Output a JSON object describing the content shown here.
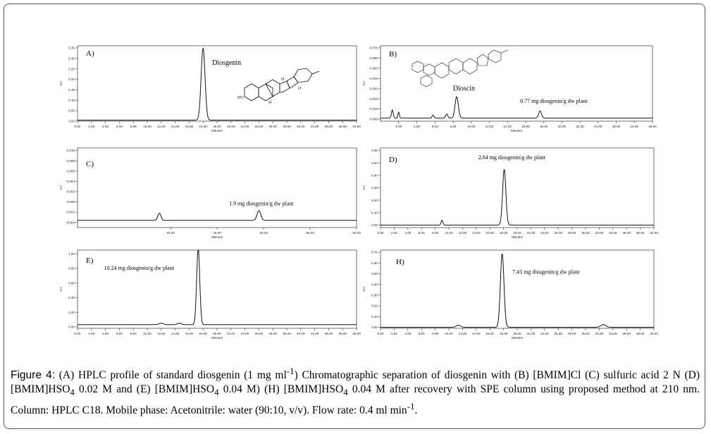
{
  "caption": {
    "label": "Figure 4:",
    "p1": "(A) HPLC profile of standard diosgenin (1 mg ml",
    "sup1": "-1",
    "p2": ") Chromatographic separation of diosgenin with (B) [BMIM]Cl (C) sulfuric acid 2 N (D) [BMIM]HSO",
    "sub1": "4",
    "p3": " 0.02 M and (E) [BMIM]HSO",
    "sub2": "4",
    "p4": " 0.04 M) (H) [BMIM]HSO",
    "sub3": "4",
    "p5": " 0.04 M after recovery with SPE column using proposed method at 210 nm. Column: HPLC C18. Mobile phase: Acetonitrile: water (90:10, v/v). Flow rate: 0.4 ml min",
    "sup2": "-1",
    "p6": "."
  },
  "chart_data": [
    {
      "type": "line",
      "panel": "A)",
      "xlabel": "Minutes",
      "ylabel": "AU",
      "xlim": [
        0,
        40
      ],
      "ylim": [
        0,
        0.36
      ],
      "xticks": [
        "0.00",
        "2.00",
        "4.00",
        "6.00",
        "8.00",
        "10.00",
        "12.00",
        "14.00",
        "16.00",
        "18.00",
        "20.00",
        "22.00",
        "24.00",
        "26.00",
        "28.00",
        "30.00",
        "32.00",
        "34.00",
        "36.00",
        "38.00",
        "40.00"
      ],
      "yticks": [
        "0.00",
        "0.05",
        "0.10",
        "0.15",
        "0.20",
        "0.25",
        "0.30",
        "0.35"
      ],
      "baseline": 0.005,
      "peaks": [
        [
          18.0,
          0.345,
          0.28
        ]
      ],
      "annotations": [
        {
          "text": "Diosgenin",
          "x": 19.3,
          "y": 0.27
        }
      ],
      "compound": "Diosgenin"
    },
    {
      "type": "line",
      "panel": "B)",
      "xlabel": "Minutes",
      "ylabel": "AU",
      "xlim": [
        0,
        30
      ],
      "ylim": [
        -0.002,
        0.072
      ],
      "xticks": [
        "2.00",
        "4.00",
        "6.00",
        "8.00",
        "10.00",
        "12.00",
        "14.00",
        "16.00",
        "18.00",
        "20.00",
        "22.00",
        "24.00",
        "26.00",
        "28.00",
        "30.00"
      ],
      "yticks": [
        "0.000",
        "0.010",
        "0.020",
        "0.030",
        "0.040",
        "0.050",
        "0.060",
        "0.070"
      ],
      "baseline": 0.001,
      "peaks": [
        [
          1.3,
          0.008,
          0.1
        ],
        [
          2.0,
          0.006,
          0.08
        ],
        [
          5.8,
          0.003,
          0.1
        ],
        [
          7.3,
          0.004,
          0.12
        ],
        [
          8.4,
          0.021,
          0.18
        ],
        [
          17.6,
          0.007,
          0.16
        ]
      ],
      "annotations": [
        {
          "text": "Dioscin",
          "x": 8.0,
          "y": 0.028
        },
        {
          "text": "0.77 mg diosgenin/g dw plant",
          "x": 15.4,
          "y": 0.016
        }
      ],
      "compound": "Dioscin"
    },
    {
      "type": "line",
      "panel": "C)",
      "xlabel": "Minutes",
      "ylabel": "AU",
      "xlim": [
        0,
        30
      ],
      "ylim": [
        -0.005,
        0.0105
      ],
      "xticks": [
        "10.00",
        "15.00",
        "20.00",
        "25.00",
        "30.00"
      ],
      "yticks": [
        "-0.004",
        "-0.002",
        "0.000",
        "0.002",
        "0.004",
        "0.006",
        "0.008",
        "0.010"
      ],
      "baseline": -0.0036,
      "peaks": [
        [
          8.8,
          0.0014,
          0.17
        ],
        [
          19.5,
          0.0019,
          0.2
        ]
      ],
      "annotations": [
        {
          "text": "1.9 mg diosgenin/g dw plant",
          "x": 16.3,
          "y": -0.0007
        }
      ]
    },
    {
      "type": "line",
      "panel": "D)",
      "xlabel": "Minutes",
      "ylabel": "AU",
      "xlim": [
        0,
        40
      ],
      "ylim": [
        -0.02,
        0.62
      ],
      "xticks": [
        "0.00",
        "2.00",
        "4.00",
        "6.00",
        "8.00",
        "10.00",
        "12.00",
        "14.00",
        "16.00",
        "18.00",
        "20.00",
        "22.00",
        "24.00",
        "26.00",
        "28.00",
        "30.00",
        "32.00",
        "34.00",
        "36.00",
        "38.00",
        "40.00"
      ],
      "yticks": [
        "0.00",
        "0.10",
        "0.20",
        "0.30",
        "0.40",
        "0.50",
        "0.60"
      ],
      "baseline": 0.0,
      "peaks": [
        [
          9.0,
          0.04,
          0.13
        ],
        [
          18.1,
          0.45,
          0.24
        ]
      ],
      "annotations": [
        {
          "text": "2.64 mg diosgenin/g dw plant",
          "x": 14.3,
          "y": 0.53
        }
      ]
    },
    {
      "type": "line",
      "panel": "E)",
      "xlabel": "Minutes",
      "ylabel": "AU",
      "xlim": [
        0,
        40
      ],
      "ylim": [
        -0.02,
        1.05
      ],
      "xticks": [
        "0.00",
        "2.00",
        "4.00",
        "6.00",
        "8.00",
        "10.00",
        "12.00",
        "14.00",
        "16.00",
        "18.00",
        "20.00",
        "22.00",
        "24.00",
        "26.00",
        "28.00",
        "30.00",
        "32.00",
        "34.00",
        "36.00",
        "38.00",
        "40.00"
      ],
      "yticks": [
        "0.00",
        "0.20",
        "0.40",
        "0.60",
        "0.80",
        "1.00"
      ],
      "baseline": 0.03,
      "peaks": [
        [
          12.0,
          0.02,
          0.3
        ],
        [
          14.6,
          0.02,
          0.3
        ],
        [
          17.3,
          1.05,
          0.22
        ]
      ],
      "annotations": [
        {
          "text": "10.24 mg diosgenin/g dw plant",
          "x": 3.8,
          "y": 0.78
        }
      ]
    },
    {
      "type": "line",
      "panel": "H)",
      "xlabel": "Minutes",
      "ylabel": "AU",
      "xlim": [
        0,
        40
      ],
      "ylim": [
        -0.01,
        0.72
      ],
      "xticks": [
        "0.00",
        "2.00",
        "4.00",
        "6.00",
        "8.00",
        "10.00",
        "12.00",
        "14.00",
        "16.00",
        "18.00",
        "20.00",
        "22.00",
        "24.00",
        "26.00",
        "28.00",
        "30.00",
        "32.00",
        "34.00",
        "36.00",
        "38.00",
        "40.00"
      ],
      "yticks": [
        "0.00",
        "0.10",
        "0.20",
        "0.30",
        "0.40",
        "0.50",
        "0.60",
        "0.70"
      ],
      "baseline": 0.0,
      "peaks": [
        [
          11.4,
          0.02,
          0.3
        ],
        [
          17.8,
          0.69,
          0.26
        ],
        [
          32.6,
          0.025,
          0.35
        ]
      ],
      "annotations": [
        {
          "text": "7.41 mg diosgenin/g dw plant",
          "x": 19.3,
          "y": 0.5
        }
      ]
    }
  ]
}
